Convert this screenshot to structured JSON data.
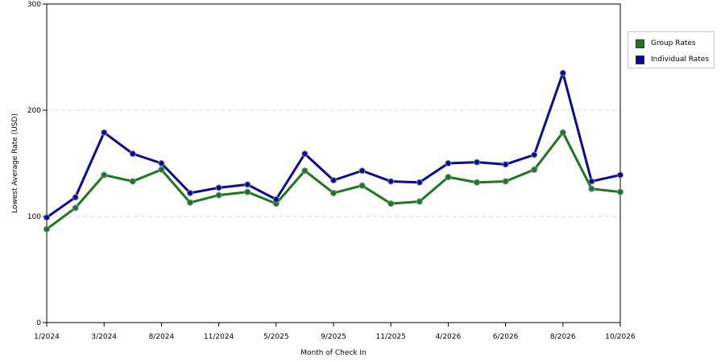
{
  "chart_data": {
    "type": "line",
    "xlabel": "Month of Check In",
    "ylabel": "Lowest Average Rate (USD)",
    "ylim": [
      0,
      300
    ],
    "yticks": [
      0,
      100,
      200,
      300
    ],
    "x_tick_labels": [
      "1/2024",
      "3/2024",
      "8/2024",
      "11/2024",
      "5/2025",
      "9/2025",
      "11/2025",
      "4/2026",
      "6/2026",
      "8/2026",
      "10/2026"
    ],
    "x_tick_positions": [
      0,
      2,
      4,
      6,
      8,
      10,
      12,
      14,
      16,
      18,
      20
    ],
    "grid": "horizontal dashed",
    "legend_position": "right",
    "series": [
      {
        "name": "Group Rates",
        "color": "#1a7a1a",
        "values": [
          88,
          108,
          139,
          133,
          144,
          113,
          120,
          123,
          112,
          143,
          122,
          129,
          112,
          114,
          137,
          132,
          133,
          144,
          179,
          126,
          123
        ]
      },
      {
        "name": "Individual Rates",
        "color": "#0a0aa0",
        "values": [
          99,
          118,
          179,
          159,
          150,
          122,
          127,
          130,
          116,
          159,
          134,
          143,
          133,
          132,
          150,
          151,
          149,
          158,
          235,
          133,
          139
        ]
      }
    ]
  }
}
